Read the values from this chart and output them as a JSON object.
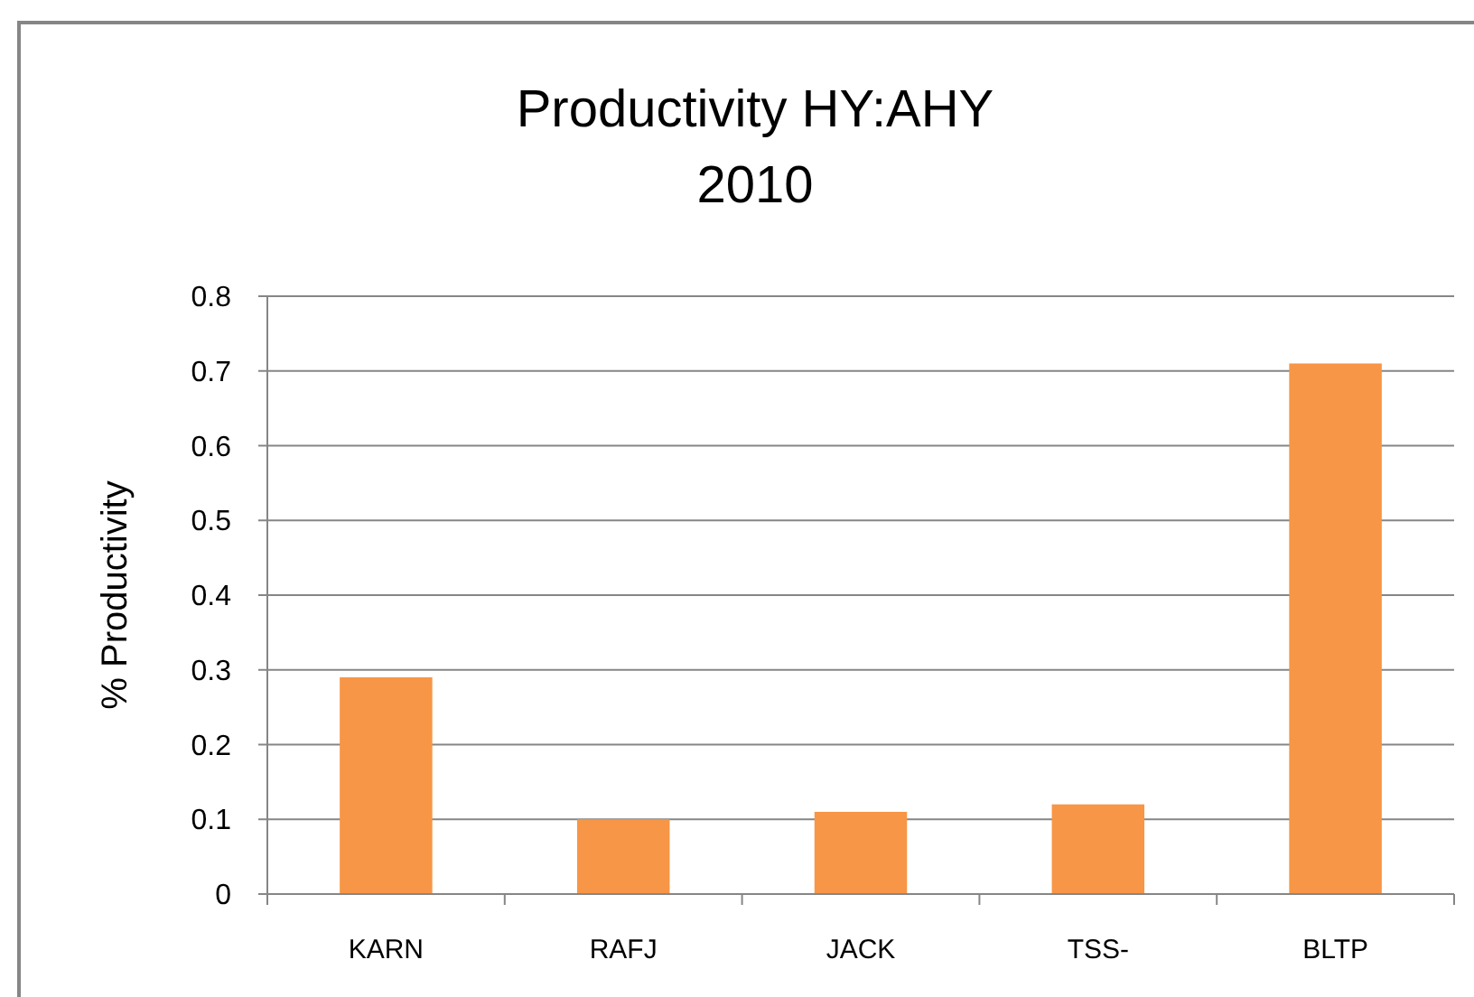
{
  "chart_data": {
    "type": "bar",
    "title": "Productivity HY:AHY",
    "subtitle": "2010",
    "ylabel": "% Productivity",
    "categories": [
      "KARN",
      "RAFJ",
      "JACK",
      "TSS-",
      "BLTP"
    ],
    "values": [
      0.29,
      0.1,
      0.11,
      0.12,
      0.71
    ],
    "color": "#f79646",
    "ylim": [
      0,
      0.8
    ],
    "yticks": [
      0,
      0.1,
      0.2,
      0.3,
      0.4,
      0.5,
      0.6,
      0.7,
      0.8
    ],
    "grid": "y"
  }
}
